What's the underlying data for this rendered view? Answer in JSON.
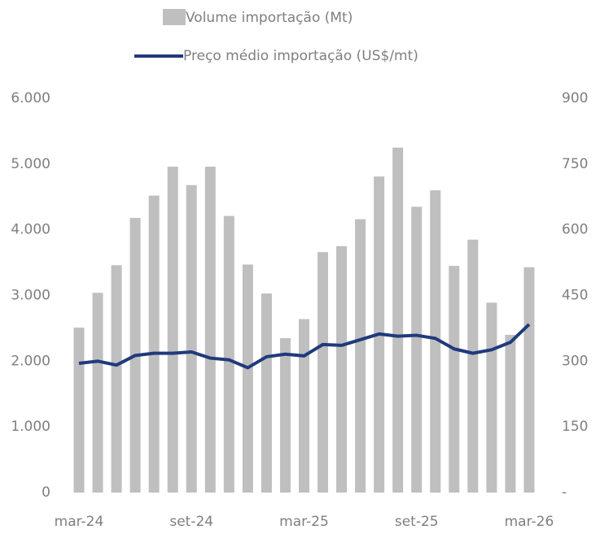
{
  "chart_data": {
    "type": "bar-line",
    "categories": [
      "mar-24",
      null,
      null,
      null,
      null,
      null,
      "set-24",
      null,
      null,
      null,
      null,
      null,
      "mar-25",
      null,
      null,
      null,
      null,
      null,
      "set-25",
      null,
      null,
      null,
      null,
      null,
      "mar-26"
    ],
    "series": [
      {
        "name": "Volume importação (Mt)",
        "type": "bar",
        "color": "#bfbfbf",
        "axis": "y",
        "values": [
          2510,
          3040,
          3460,
          4180,
          4520,
          4960,
          4680,
          4960,
          4210,
          3470,
          3030,
          2350,
          2640,
          3660,
          3750,
          4160,
          4810,
          5250,
          4350,
          4600,
          3450,
          3850,
          2890,
          2400,
          3430
        ]
      },
      {
        "name": "Preço médio importação (US$/mt)",
        "type": "line",
        "color": "#203a7c",
        "axis": "y2",
        "values": [
          295,
          300,
          291,
          313,
          318,
          318,
          321,
          307,
          303,
          285,
          310,
          316,
          312,
          338,
          336,
          349,
          362,
          357,
          359,
          352,
          328,
          318,
          326,
          343,
          384
        ]
      }
    ],
    "ylim": [
      0,
      6000
    ],
    "yticks": [
      0,
      {
        "value": 1000,
        "label": "1.000"
      },
      {
        "value": 2000,
        "label": "2.000"
      },
      {
        "value": 3000,
        "label": "3.000"
      },
      {
        "value": 4000,
        "label": "4.000"
      },
      {
        "value": 5000,
        "label": "5.000"
      },
      {
        "value": 6000,
        "label": "6.000"
      }
    ],
    "y2lim": [
      0,
      900
    ],
    "y2ticks": [
      {
        "value": 0,
        "label": "-"
      },
      150,
      300,
      450,
      600,
      750,
      900
    ],
    "legend": "top",
    "grid": false
  }
}
